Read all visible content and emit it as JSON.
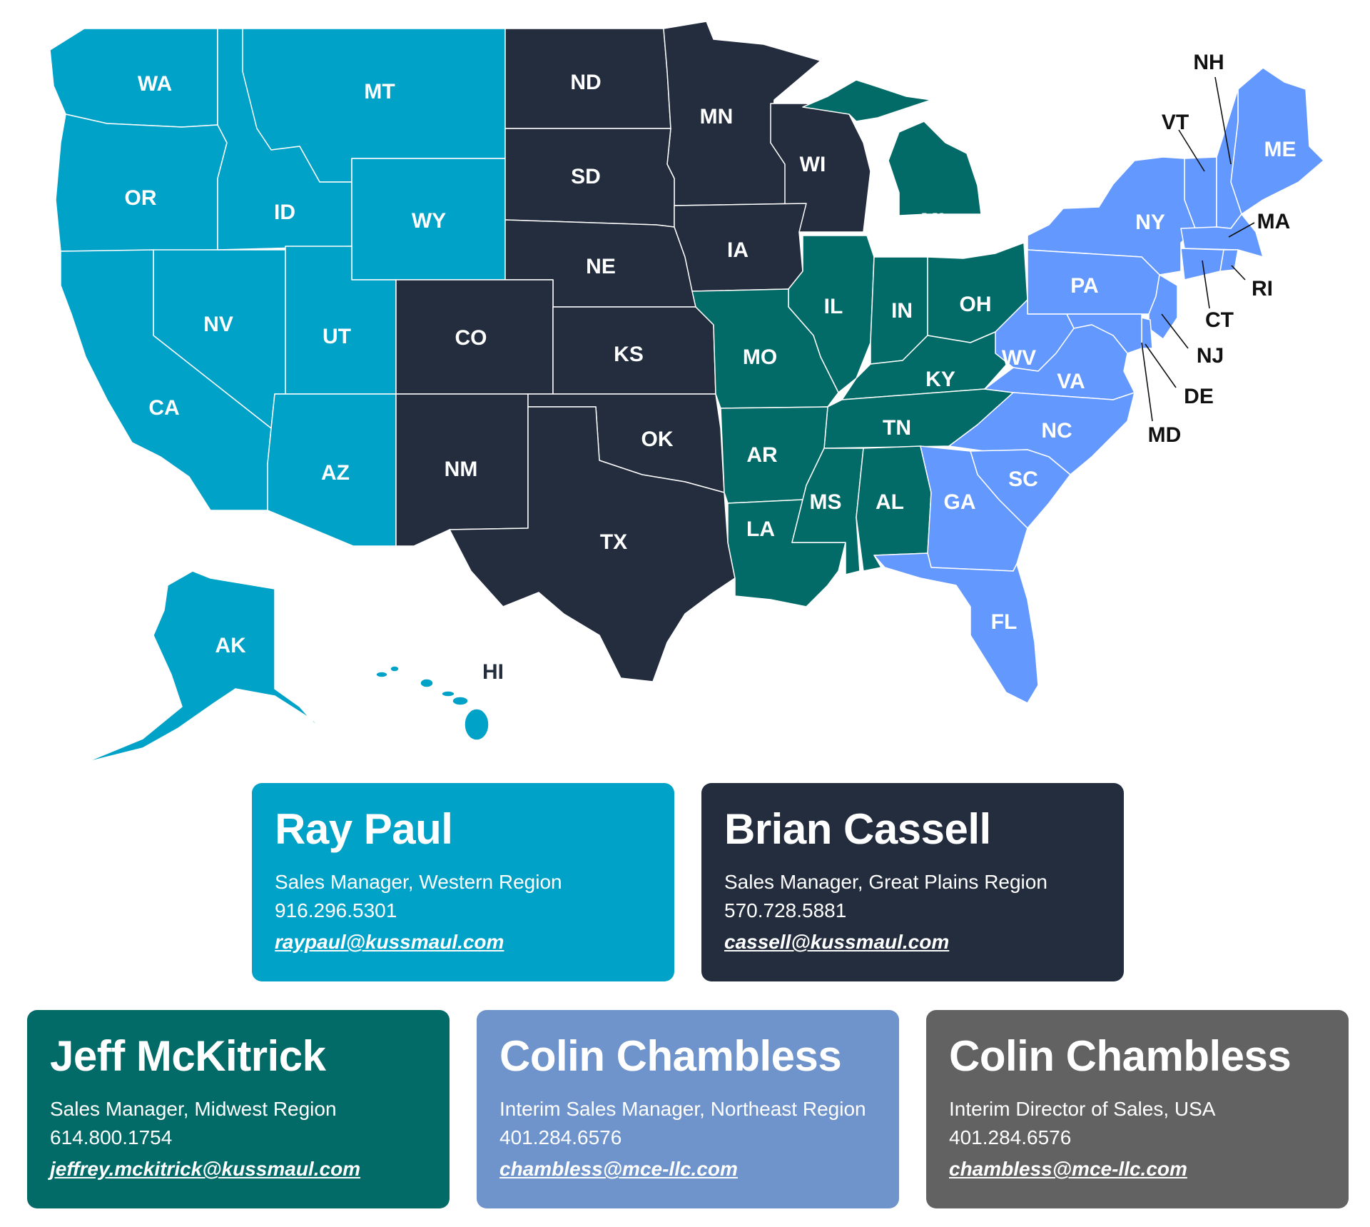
{
  "colors": {
    "western": "#01a2c7",
    "great_plains": "#232d3e",
    "midwest": "#026b68",
    "northeast": "#6398ff",
    "card_northeast": "#6f94cc",
    "card_usa": "#626262",
    "callout_text": "#111111"
  },
  "map": {
    "states": [
      {
        "abbr": "WA",
        "region": "western"
      },
      {
        "abbr": "MT",
        "region": "western"
      },
      {
        "abbr": "OR",
        "region": "western"
      },
      {
        "abbr": "ID",
        "region": "western"
      },
      {
        "abbr": "WY",
        "region": "western"
      },
      {
        "abbr": "NV",
        "region": "western"
      },
      {
        "abbr": "UT",
        "region": "western"
      },
      {
        "abbr": "CA",
        "region": "western"
      },
      {
        "abbr": "AZ",
        "region": "western"
      },
      {
        "abbr": "AK",
        "region": "western"
      },
      {
        "abbr": "ND",
        "region": "great_plains"
      },
      {
        "abbr": "MN",
        "region": "great_plains"
      },
      {
        "abbr": "SD",
        "region": "great_plains"
      },
      {
        "abbr": "WI",
        "region": "great_plains"
      },
      {
        "abbr": "NE",
        "region": "great_plains"
      },
      {
        "abbr": "IA",
        "region": "great_plains"
      },
      {
        "abbr": "CO",
        "region": "great_plains"
      },
      {
        "abbr": "KS",
        "region": "great_plains"
      },
      {
        "abbr": "NM",
        "region": "great_plains"
      },
      {
        "abbr": "OK",
        "region": "great_plains"
      },
      {
        "abbr": "TX",
        "region": "great_plains"
      },
      {
        "abbr": "MI",
        "region": "midwest"
      },
      {
        "abbr": "IL",
        "region": "midwest"
      },
      {
        "abbr": "IN",
        "region": "midwest"
      },
      {
        "abbr": "OH",
        "region": "midwest"
      },
      {
        "abbr": "MO",
        "region": "midwest"
      },
      {
        "abbr": "KY",
        "region": "midwest"
      },
      {
        "abbr": "TN",
        "region": "midwest"
      },
      {
        "abbr": "AR",
        "region": "midwest"
      },
      {
        "abbr": "MS",
        "region": "midwest"
      },
      {
        "abbr": "AL",
        "region": "midwest"
      },
      {
        "abbr": "LA",
        "region": "midwest"
      },
      {
        "abbr": "ME",
        "region": "northeast"
      },
      {
        "abbr": "NY",
        "region": "northeast"
      },
      {
        "abbr": "PA",
        "region": "northeast"
      },
      {
        "abbr": "WV",
        "region": "northeast"
      },
      {
        "abbr": "VA",
        "region": "northeast"
      },
      {
        "abbr": "NC",
        "region": "northeast"
      },
      {
        "abbr": "SC",
        "region": "northeast"
      },
      {
        "abbr": "GA",
        "region": "northeast"
      },
      {
        "abbr": "FL",
        "region": "northeast"
      }
    ],
    "callouts": [
      "NH",
      "VT",
      "MA",
      "RI",
      "CT",
      "NJ",
      "DE",
      "MD",
      "HI"
    ]
  },
  "cards": [
    {
      "name": "Ray Paul",
      "title": "Sales Manager, Western Region",
      "phone": "916.296.5301",
      "email": "raypaul@kussmaul.com",
      "color": "#01a2c7"
    },
    {
      "name": "Brian Cassell",
      "title": "Sales Manager, Great Plains Region",
      "phone": "570.728.5881",
      "email": "cassell@kussmaul.com",
      "color": "#232d3e"
    },
    {
      "name": "Jeff McKitrick",
      "title": "Sales Manager, Midwest Region",
      "phone": "614.800.1754",
      "email": "jeffrey.mckitrick@kussmaul.com",
      "color": "#026b68"
    },
    {
      "name": "Colin Chambless",
      "title": "Interim Sales Manager, Northeast Region",
      "phone": "401.284.6576",
      "email": "chambless@mce-llc.com",
      "color": "#6f94cc"
    },
    {
      "name": "Colin Chambless",
      "title": "Interim Director of Sales, USA",
      "phone": "401.284.6576",
      "email": "chambless@mce-llc.com",
      "color": "#626262"
    }
  ]
}
